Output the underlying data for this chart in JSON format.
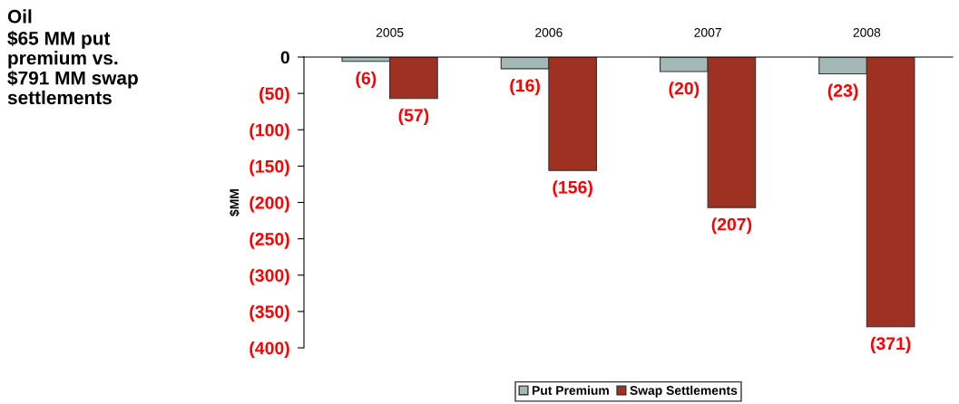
{
  "chart_data": {
    "type": "bar",
    "title": "Oil",
    "subtitle": "$65 MM put\npremium vs.\n$791 MM swap\nsettlements",
    "ylabel": "$MM",
    "categories": [
      "2005",
      "2006",
      "2007",
      "2008"
    ],
    "series": [
      {
        "name": "Put Premium",
        "color": "#a5b8b8",
        "values": [
          -6,
          -16,
          -20,
          -23
        ],
        "value_labels": [
          "(6)",
          "(16)",
          "(20)",
          "(23)"
        ]
      },
      {
        "name": "Swap Settlements",
        "color": "#9e3122",
        "values": [
          -57,
          -156,
          -207,
          -371
        ],
        "value_labels": [
          "(57)",
          "(156)",
          "(207)",
          "(371)"
        ]
      }
    ],
    "ylim": [
      -400,
      0
    ],
    "yticks": [
      0,
      {
        "value": -50,
        "label": "(50)"
      },
      {
        "value": -100,
        "label": "(100)"
      },
      {
        "value": -150,
        "label": "(150)"
      },
      {
        "value": -200,
        "label": "(200)"
      },
      {
        "value": -250,
        "label": "(250)"
      },
      {
        "value": -300,
        "label": "(300)"
      },
      {
        "value": -350,
        "label": "(350)"
      },
      {
        "value": -400,
        "label": "(400)"
      }
    ],
    "grid": false,
    "legend": "bottom"
  }
}
